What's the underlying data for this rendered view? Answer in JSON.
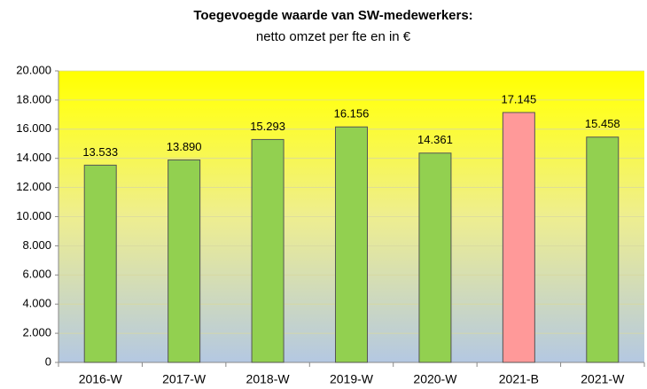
{
  "chart_data": {
    "type": "bar",
    "title": "Toegevoegde waarde van SW-medewerkers:",
    "subtitle": "netto omzet per fte en in €",
    "categories": [
      "2016-W",
      "2017-W",
      "2018-W",
      "2019-W",
      "2020-W",
      "2021-B",
      "2021-W"
    ],
    "values": [
      13533,
      13890,
      15293,
      16156,
      14361,
      17145,
      15458
    ],
    "value_labels": [
      "13.533",
      "13.890",
      "15.293",
      "16.156",
      "14.361",
      "17.145",
      "15.458"
    ],
    "colors": [
      "#92d050",
      "#92d050",
      "#92d050",
      "#92d050",
      "#92d050",
      "#ff9999",
      "#92d050"
    ],
    "ylim": [
      0,
      20000
    ],
    "yticks": [
      0,
      {
        "value": 2000,
        "label": "2.000"
      },
      {
        "value": 4000,
        "label": "4.000"
      },
      {
        "value": 6000,
        "label": "6.000"
      },
      {
        "value": 8000,
        "label": "8.000"
      },
      {
        "value": 10000,
        "label": "10.000"
      },
      {
        "value": 12000,
        "label": "12.000"
      },
      {
        "value": 14000,
        "label": "14.000"
      },
      {
        "value": 16000,
        "label": "16.000"
      },
      {
        "value": 18000,
        "label": "18.000"
      },
      {
        "value": 20000,
        "label": "20.000"
      }
    ],
    "grid": true
  }
}
